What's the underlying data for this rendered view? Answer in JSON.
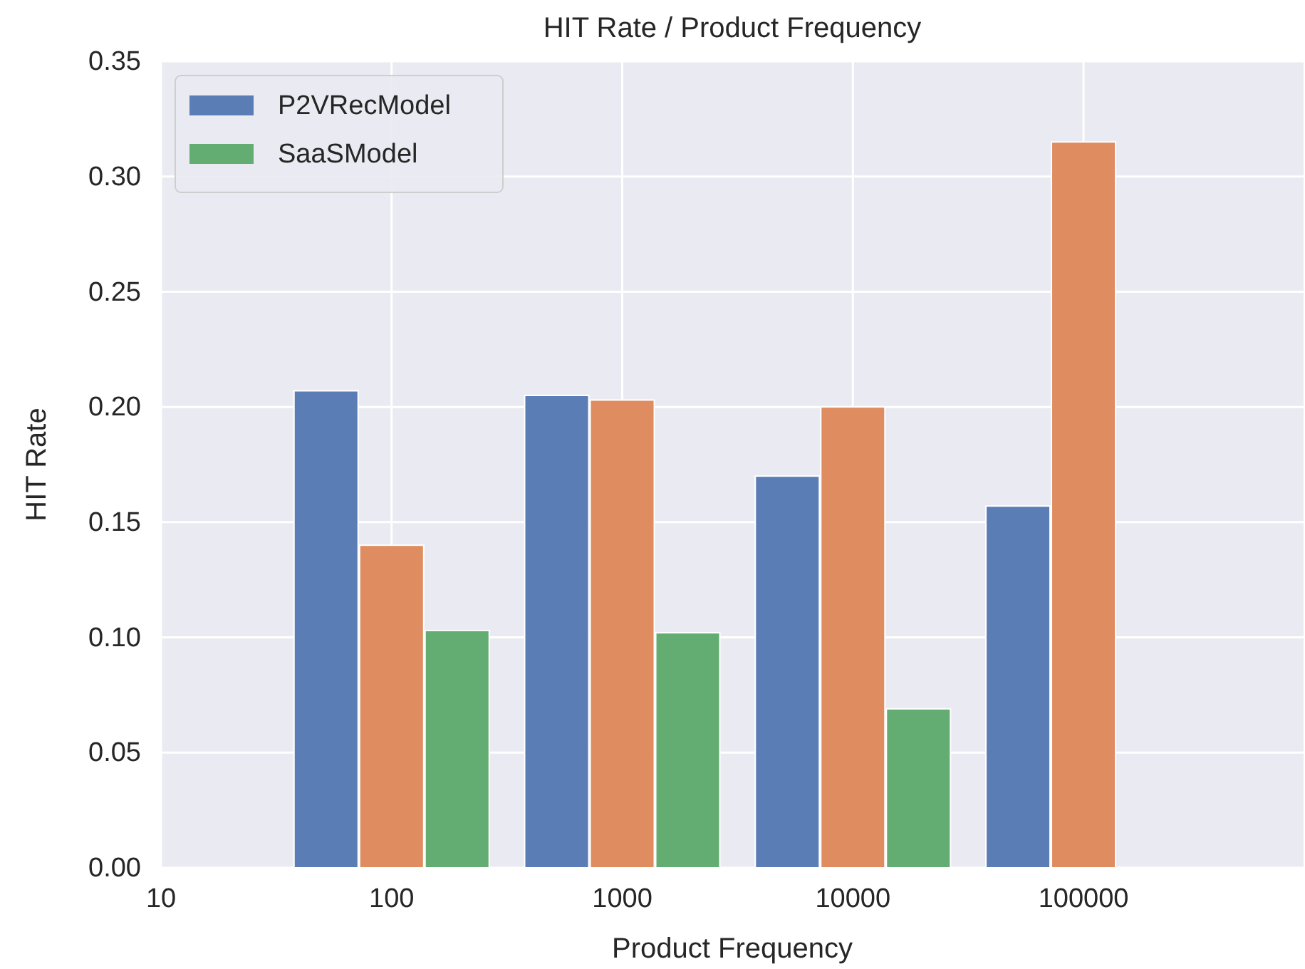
{
  "chart_data": {
    "type": "bar",
    "title": "HIT Rate / Product Frequency",
    "xlabel": "Product Frequency",
    "ylabel": "HIT Rate",
    "x": [
      100,
      1000,
      10000,
      100000
    ],
    "log": "x",
    "xlim": [
      10,
      900000
    ],
    "xticks": [
      10,
      100,
      1000,
      10000,
      100000
    ],
    "ylim": [
      0,
      0.35
    ],
    "yticks": [
      {
        "value": 0,
        "label": "0.00"
      },
      {
        "value": 0.05,
        "label": "0.05"
      },
      {
        "value": 0.1,
        "label": "0.10"
      },
      {
        "value": 0.15,
        "label": "0.15"
      },
      {
        "value": 0.2,
        "label": "0.20"
      },
      {
        "value": 0.25,
        "label": "0.25"
      },
      {
        "value": 0.3,
        "label": "0.30"
      },
      {
        "value": 0.35,
        "label": "0.35"
      }
    ],
    "grid": true,
    "legend": "top left",
    "series": [
      {
        "name": "P2VRecModel",
        "color": "#5b7db6",
        "values": [
          0.207,
          0.205,
          0.17,
          0.157
        ]
      },
      {
        "color": "#de8c60",
        "values": [
          0.14,
          0.203,
          0.2,
          0.315
        ]
      },
      {
        "name": "SaaSModel",
        "color": "#64ad72",
        "values": [
          0.103,
          0.102,
          0.069,
          null
        ]
      }
    ]
  }
}
